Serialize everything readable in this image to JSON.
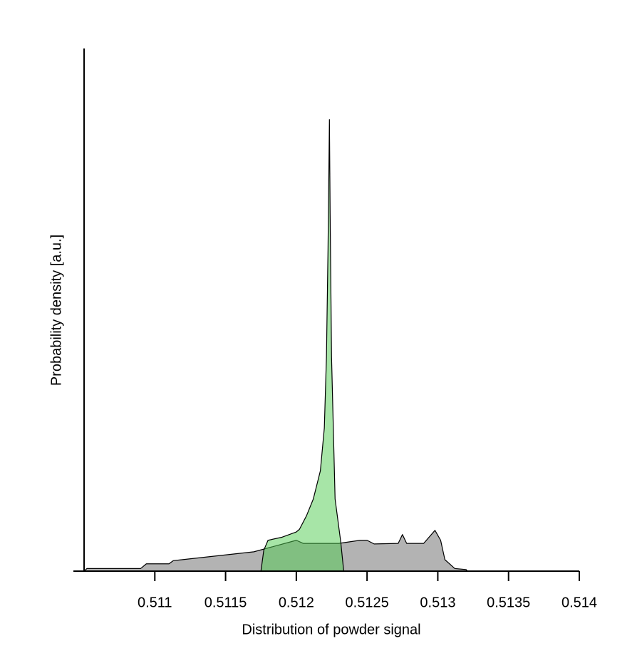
{
  "chart_data": {
    "type": "area",
    "xlabel": "Distribution of powder signal",
    "ylabel": "Probability density [a.u.]",
    "xlim": [
      0.5105,
      0.514
    ],
    "ylim": [
      0,
      100
    ],
    "xticks": [
      0.511,
      0.5115,
      0.512,
      0.5125,
      0.513,
      0.5135,
      0.514
    ],
    "opacity": 0.5,
    "series": [
      {
        "color": "#b3b3b3",
        "x": [
          0.5105,
          0.51052,
          0.5109,
          0.51094,
          0.5111,
          0.51113,
          0.5117,
          0.512,
          0.51205,
          0.5123,
          0.51245,
          0.5125,
          0.51255,
          0.51272,
          0.51275,
          0.51278,
          0.5129,
          0.51298,
          0.51302,
          0.51305,
          0.51312,
          0.5132,
          0.51321
        ],
        "values": [
          0,
          0.5,
          0.5,
          1.4,
          1.4,
          2.0,
          3.7,
          5.9,
          5.3,
          5.3,
          5.9,
          5.9,
          5.2,
          5.3,
          7.0,
          5.3,
          5.3,
          7.8,
          5.9,
          2.2,
          0.5,
          0.3,
          0
        ]
      },
      {
        "color": "#4fcc4f",
        "x": [
          0.51175,
          0.51177,
          0.5118,
          0.5119,
          0.512,
          0.512022,
          0.512072,
          0.51212,
          0.51217,
          0.512198,
          0.512213,
          0.512224,
          0.512234,
          0.512239,
          0.512249,
          0.512274,
          0.512314,
          0.512335
        ],
        "values": [
          0,
          4.0,
          5.9,
          6.5,
          7.5,
          8.0,
          10.6,
          13.8,
          19.2,
          27.4,
          41,
          61.5,
          86.4,
          68.3,
          41,
          13.8,
          5.6,
          0
        ]
      }
    ]
  }
}
